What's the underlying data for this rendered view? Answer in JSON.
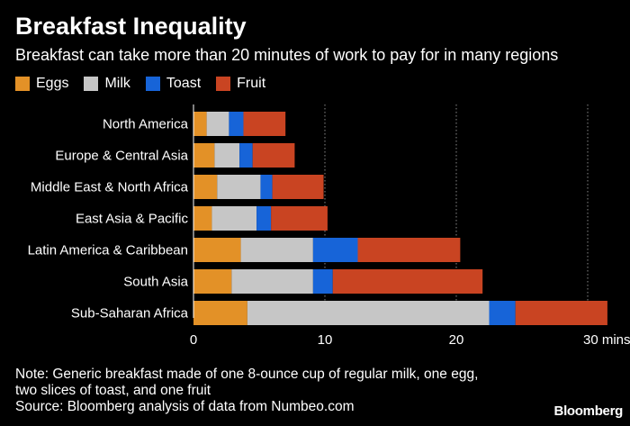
{
  "header": {
    "title": "Breakfast Inequality",
    "subtitle": "Breakfast can take more than 20 minutes of work to pay for in many regions"
  },
  "colors": {
    "Eggs": "#e39127",
    "Milk": "#c6c6c6",
    "Toast": "#1764d8",
    "Fruit": "#c94422",
    "background": "#000000",
    "grid": "#8a8a8a"
  },
  "chart_data": {
    "type": "bar",
    "orientation": "horizontal",
    "stacked": true,
    "title": "Breakfast Inequality",
    "subtitle": "Breakfast can take more than 20 minutes of work to pay for in many regions",
    "categories": [
      "North America",
      "Europe & Central Asia",
      "Middle East & North Africa",
      "East Asia & Pacific",
      "Latin America & Caribbean",
      "South Asia",
      "Sub-Saharan Africa"
    ],
    "series": [
      {
        "name": "Eggs",
        "values": [
          1.0,
          1.6,
          1.8,
          1.4,
          3.6,
          2.9,
          4.1
        ]
      },
      {
        "name": "Milk",
        "values": [
          1.7,
          1.9,
          3.3,
          3.4,
          5.5,
          6.2,
          18.4
        ]
      },
      {
        "name": "Toast",
        "values": [
          1.1,
          1.0,
          0.9,
          1.1,
          3.4,
          1.5,
          2.0
        ]
      },
      {
        "name": "Fruit",
        "values": [
          3.2,
          3.2,
          3.9,
          4.3,
          7.8,
          11.4,
          7.0
        ]
      }
    ],
    "xlim": [
      0,
      32
    ],
    "xticks": [
      0,
      10,
      20,
      30
    ],
    "xtick_labels": [
      "0",
      "10",
      "20",
      "30 mins"
    ],
    "xlabel": "",
    "ylabel": "",
    "grid": true,
    "legend_position": "top-left"
  },
  "footer": {
    "note_line1": "Note: Generic breakfast made of one 8-ounce cup of regular milk, one egg,",
    "note_line2": "two slices of toast, and one fruit",
    "source": "Source: Bloomberg analysis of data from Numbeo.com",
    "brand": "Bloomberg"
  }
}
